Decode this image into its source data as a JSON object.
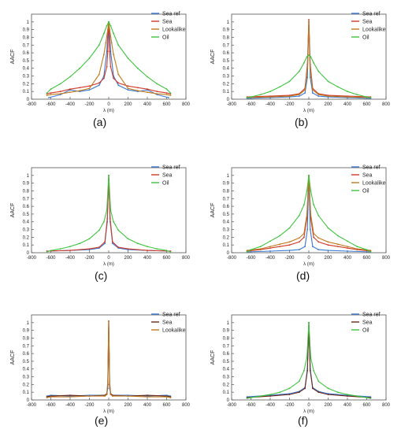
{
  "chart_data": [
    {
      "type": "line",
      "panel_label": "(a)",
      "xlabel": "λ (m)",
      "ylabel": "AACF",
      "xlim": [
        -800,
        800
      ],
      "ylim": [
        0,
        1.1
      ],
      "xticks": [
        -800,
        -600,
        -400,
        -200,
        0,
        200,
        400,
        600,
        800
      ],
      "yticks": [
        0,
        0.1,
        0.2,
        0.3,
        0.4,
        0.5,
        0.6,
        0.7,
        0.8,
        0.9,
        1
      ],
      "legend": "top-right",
      "series": [
        {
          "name": "Sea ref",
          "color": "#3a78d0",
          "x": [
            -620,
            -500,
            -400,
            -300,
            -200,
            -100,
            -50,
            -20,
            -10,
            0,
            10,
            20,
            50,
            100,
            200,
            300,
            400,
            500,
            620
          ],
          "y": [
            0.02,
            0.06,
            0.12,
            0.1,
            0.12,
            0.18,
            0.3,
            0.62,
            0.85,
            1.0,
            0.85,
            0.62,
            0.3,
            0.18,
            0.12,
            0.1,
            0.12,
            0.06,
            0.02
          ]
        },
        {
          "name": "Sea",
          "color": "#d03a2a",
          "x": [
            -640,
            -600,
            -500,
            -400,
            -300,
            -200,
            -100,
            -50,
            -20,
            -10,
            0,
            10,
            20,
            50,
            100,
            200,
            300,
            400,
            500,
            600,
            640
          ],
          "y": [
            0.07,
            0.08,
            0.1,
            0.13,
            0.15,
            0.17,
            0.21,
            0.27,
            0.42,
            0.62,
            1.0,
            0.62,
            0.42,
            0.27,
            0.21,
            0.17,
            0.15,
            0.13,
            0.1,
            0.08,
            0.07
          ]
        },
        {
          "name": "Lookalike",
          "color": "#c07a20",
          "x": [
            -640,
            -600,
            -500,
            -400,
            -300,
            -200,
            -100,
            -50,
            -30,
            -10,
            0,
            10,
            30,
            50,
            100,
            200,
            300,
            400,
            500,
            600,
            640
          ],
          "y": [
            0.05,
            0.06,
            0.07,
            0.09,
            0.11,
            0.14,
            0.32,
            0.58,
            0.73,
            0.9,
            1.0,
            0.9,
            0.73,
            0.58,
            0.32,
            0.14,
            0.11,
            0.09,
            0.07,
            0.06,
            0.05
          ]
        },
        {
          "name": "Oil",
          "color": "#3ec43e",
          "x": [
            -640,
            -600,
            -500,
            -400,
            -300,
            -200,
            -100,
            -50,
            -20,
            0,
            20,
            50,
            100,
            200,
            300,
            400,
            500,
            600,
            640
          ],
          "y": [
            0.08,
            0.13,
            0.2,
            0.29,
            0.4,
            0.53,
            0.7,
            0.85,
            0.95,
            1.0,
            0.95,
            0.85,
            0.7,
            0.53,
            0.4,
            0.29,
            0.2,
            0.13,
            0.08
          ]
        }
      ]
    },
    {
      "type": "line",
      "panel_label": "(b)",
      "xlabel": "λ (m)",
      "ylabel": "AACF",
      "xlim": [
        -800,
        800
      ],
      "ylim": [
        0,
        1.1
      ],
      "xticks": [
        -800,
        -600,
        -400,
        -200,
        0,
        200,
        400,
        600,
        800
      ],
      "yticks": [
        0,
        0.1,
        0.2,
        0.3,
        0.4,
        0.5,
        0.6,
        0.7,
        0.8,
        0.9,
        1
      ],
      "legend": "top-right",
      "series": [
        {
          "name": "Sea ref",
          "color": "#3a78d0",
          "x": [
            -640,
            -400,
            -200,
            -100,
            -40,
            -15,
            0,
            15,
            40,
            100,
            200,
            400,
            640
          ],
          "y": [
            0.01,
            0.02,
            0.03,
            0.04,
            0.08,
            0.28,
            1.0,
            0.28,
            0.08,
            0.04,
            0.03,
            0.02,
            0.01
          ]
        },
        {
          "name": "Sea",
          "color": "#d03a2a",
          "x": [
            -640,
            -400,
            -200,
            -100,
            -40,
            -15,
            0,
            15,
            40,
            100,
            200,
            400,
            640
          ],
          "y": [
            0.03,
            0.04,
            0.05,
            0.07,
            0.14,
            0.45,
            1.03,
            0.45,
            0.14,
            0.07,
            0.05,
            0.04,
            0.03
          ]
        },
        {
          "name": "Lookalike",
          "color": "#c07a20",
          "x": [
            -640,
            -400,
            -200,
            -100,
            -40,
            -15,
            0,
            15,
            40,
            100,
            200,
            400,
            640
          ],
          "y": [
            0.02,
            0.03,
            0.04,
            0.06,
            0.12,
            0.4,
            1.0,
            0.4,
            0.12,
            0.06,
            0.04,
            0.03,
            0.02
          ]
        },
        {
          "name": "Oil",
          "color": "#3ec43e",
          "x": [
            -640,
            -600,
            -500,
            -400,
            -300,
            -200,
            -100,
            -50,
            -20,
            0,
            20,
            50,
            100,
            200,
            300,
            400,
            500,
            600,
            640
          ],
          "y": [
            0.02,
            0.03,
            0.06,
            0.1,
            0.16,
            0.23,
            0.36,
            0.47,
            0.55,
            0.57,
            0.55,
            0.47,
            0.36,
            0.23,
            0.16,
            0.1,
            0.06,
            0.03,
            0.02
          ]
        }
      ]
    },
    {
      "type": "line",
      "panel_label": "(c)",
      "xlabel": "λ (m)",
      "ylabel": "AACF",
      "xlim": [
        -800,
        800
      ],
      "ylim": [
        0,
        1.1
      ],
      "xticks": [
        -800,
        -600,
        -400,
        -200,
        0,
        200,
        400,
        600,
        800
      ],
      "yticks": [
        0,
        0.1,
        0.2,
        0.3,
        0.4,
        0.5,
        0.6,
        0.7,
        0.8,
        0.9,
        1
      ],
      "legend": "top-right",
      "series": [
        {
          "name": "Sea ref",
          "color": "#3a78d0",
          "x": [
            -640,
            -400,
            -200,
            -100,
            -40,
            -15,
            0,
            15,
            40,
            100,
            200,
            400,
            640
          ],
          "y": [
            0.02,
            0.03,
            0.04,
            0.06,
            0.12,
            0.4,
            1.0,
            0.4,
            0.12,
            0.06,
            0.04,
            0.03,
            0.02
          ]
        },
        {
          "name": "Sea",
          "color": "#d03a2a",
          "x": [
            -640,
            -400,
            -200,
            -100,
            -40,
            -15,
            0,
            15,
            40,
            100,
            200,
            400,
            640
          ],
          "y": [
            0.02,
            0.03,
            0.05,
            0.07,
            0.14,
            0.44,
            1.0,
            0.44,
            0.14,
            0.07,
            0.05,
            0.03,
            0.02
          ]
        },
        {
          "name": "Oil",
          "color": "#3ec43e",
          "x": [
            -640,
            -600,
            -500,
            -400,
            -300,
            -200,
            -100,
            -50,
            -20,
            0,
            20,
            50,
            100,
            200,
            300,
            400,
            500,
            600,
            640
          ],
          "y": [
            0.01,
            0.03,
            0.05,
            0.08,
            0.12,
            0.18,
            0.29,
            0.4,
            0.55,
            1.0,
            0.55,
            0.4,
            0.29,
            0.18,
            0.12,
            0.08,
            0.05,
            0.03,
            0.01
          ]
        }
      ]
    },
    {
      "type": "line",
      "panel_label": "(d)",
      "xlabel": "λ (m)",
      "ylabel": "AACF",
      "xlim": [
        -800,
        800
      ],
      "ylim": [
        0,
        1.1
      ],
      "xticks": [
        -800,
        -600,
        -400,
        -200,
        0,
        200,
        400,
        600,
        800
      ],
      "yticks": [
        0,
        0.1,
        0.2,
        0.3,
        0.4,
        0.5,
        0.6,
        0.7,
        0.8,
        0.9,
        1
      ],
      "legend": "top-right",
      "series": [
        {
          "name": "Sea ref",
          "color": "#3a78d0",
          "x": [
            -640,
            -400,
            -200,
            -100,
            -40,
            -15,
            0,
            15,
            40,
            100,
            200,
            400,
            640
          ],
          "y": [
            0.01,
            0.02,
            0.03,
            0.04,
            0.08,
            0.3,
            1.0,
            0.3,
            0.08,
            0.04,
            0.03,
            0.02,
            0.01
          ]
        },
        {
          "name": "Sea",
          "color": "#d03a2a",
          "x": [
            -640,
            -500,
            -400,
            -300,
            -200,
            -100,
            -50,
            -20,
            0,
            20,
            50,
            100,
            200,
            300,
            400,
            500,
            640
          ],
          "y": [
            0.02,
            0.04,
            0.06,
            0.08,
            0.1,
            0.14,
            0.2,
            0.45,
            1.0,
            0.45,
            0.2,
            0.14,
            0.1,
            0.08,
            0.06,
            0.04,
            0.02
          ]
        },
        {
          "name": "Lookalike",
          "color": "#c07a20",
          "x": [
            -640,
            -500,
            -400,
            -300,
            -200,
            -100,
            -50,
            -20,
            0,
            20,
            50,
            100,
            200,
            300,
            400,
            500,
            640
          ],
          "y": [
            0.03,
            0.05,
            0.08,
            0.11,
            0.14,
            0.19,
            0.25,
            0.5,
            1.0,
            0.5,
            0.25,
            0.19,
            0.14,
            0.11,
            0.08,
            0.05,
            0.03
          ]
        },
        {
          "name": "Oil",
          "color": "#3ec43e",
          "x": [
            -640,
            -600,
            -500,
            -400,
            -300,
            -200,
            -100,
            -50,
            -20,
            0,
            20,
            50,
            100,
            200,
            300,
            400,
            500,
            600,
            640
          ],
          "y": [
            0.01,
            0.04,
            0.08,
            0.15,
            0.22,
            0.32,
            0.48,
            0.62,
            0.8,
            1.0,
            0.8,
            0.62,
            0.48,
            0.32,
            0.22,
            0.15,
            0.08,
            0.04,
            0.01
          ]
        }
      ]
    },
    {
      "type": "line",
      "panel_label": "(e)",
      "xlabel": "λ (m)",
      "ylabel": "AACF",
      "xlim": [
        -800,
        800
      ],
      "ylim": [
        0,
        1.1
      ],
      "xticks": [
        -800,
        -600,
        -400,
        -200,
        0,
        200,
        400,
        600,
        800
      ],
      "yticks": [
        0,
        0.1,
        0.2,
        0.3,
        0.4,
        0.5,
        0.6,
        0.7,
        0.8,
        0.9,
        1
      ],
      "legend": "top-right",
      "series": [
        {
          "name": "Sea ref",
          "color": "#3a78d0",
          "x": [
            -640,
            -600,
            -400,
            -200,
            -40,
            -20,
            -10,
            0,
            10,
            20,
            40,
            200,
            400,
            600,
            640
          ],
          "y": [
            0.05,
            0.06,
            0.05,
            0.06,
            0.06,
            0.08,
            0.15,
            1.02,
            0.15,
            0.08,
            0.06,
            0.06,
            0.05,
            0.06,
            0.05
          ]
        },
        {
          "name": "Sea",
          "color": "#6a2a1a",
          "x": [
            -640,
            -600,
            -400,
            -200,
            -40,
            -20,
            -10,
            0,
            10,
            20,
            40,
            200,
            400,
            600,
            640
          ],
          "y": [
            0.04,
            0.05,
            0.06,
            0.05,
            0.06,
            0.08,
            0.2,
            1.02,
            0.2,
            0.08,
            0.06,
            0.05,
            0.06,
            0.05,
            0.04
          ]
        },
        {
          "name": "Lookalike",
          "color": "#c07a20",
          "x": [
            -640,
            -600,
            -400,
            -200,
            -40,
            -20,
            -10,
            0,
            10,
            20,
            40,
            200,
            400,
            600,
            640
          ],
          "y": [
            0.03,
            0.04,
            0.04,
            0.05,
            0.05,
            0.07,
            0.25,
            1.02,
            0.25,
            0.07,
            0.05,
            0.05,
            0.04,
            0.04,
            0.03
          ]
        }
      ]
    },
    {
      "type": "line",
      "panel_label": "(f)",
      "xlabel": "λ (m)",
      "ylabel": "AACF",
      "xlim": [
        -800,
        800
      ],
      "ylim": [
        0,
        1.1
      ],
      "xticks": [
        -800,
        -600,
        -400,
        -200,
        0,
        200,
        400,
        600,
        800
      ],
      "yticks": [
        0,
        0.1,
        0.2,
        0.3,
        0.4,
        0.5,
        0.6,
        0.7,
        0.8,
        0.9,
        1
      ],
      "legend": "top-right",
      "series": [
        {
          "name": "Sea ref",
          "color": "#3a78d0",
          "x": [
            -640,
            -400,
            -200,
            -100,
            -40,
            -15,
            0,
            15,
            40,
            100,
            200,
            400,
            640
          ],
          "y": [
            0.04,
            0.06,
            0.08,
            0.11,
            0.16,
            0.4,
            1.0,
            0.4,
            0.16,
            0.11,
            0.08,
            0.06,
            0.04
          ]
        },
        {
          "name": "Sea",
          "color": "#6a2a1a",
          "x": [
            -640,
            -400,
            -200,
            -100,
            -40,
            -15,
            0,
            15,
            40,
            100,
            200,
            400,
            640
          ],
          "y": [
            0.03,
            0.05,
            0.07,
            0.1,
            0.15,
            0.38,
            1.0,
            0.38,
            0.15,
            0.1,
            0.07,
            0.05,
            0.03
          ]
        },
        {
          "name": "Oil",
          "color": "#3ec43e",
          "x": [
            -640,
            -600,
            -500,
            -400,
            -300,
            -200,
            -100,
            -50,
            -20,
            0,
            20,
            50,
            100,
            200,
            300,
            400,
            500,
            600,
            640
          ],
          "y": [
            0.02,
            0.03,
            0.05,
            0.07,
            0.1,
            0.15,
            0.24,
            0.38,
            0.55,
            1.0,
            0.55,
            0.38,
            0.24,
            0.15,
            0.1,
            0.07,
            0.05,
            0.03,
            0.02
          ]
        }
      ]
    }
  ]
}
